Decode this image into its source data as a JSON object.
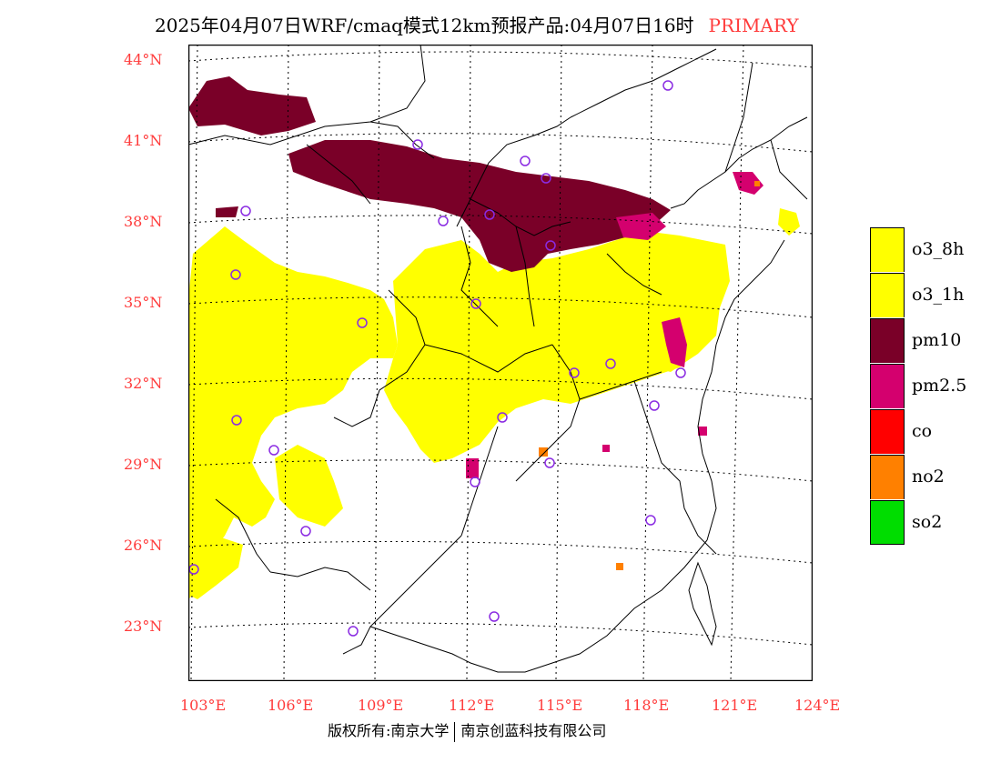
{
  "title": {
    "main": "2025年04月07日WRF/cmaq模式12km预报产品:04月07日16时",
    "mode": "PRIMARY"
  },
  "colors": {
    "title_accent": "#ff3b3b",
    "axis_label": "#ff3b3b",
    "o3_8h": "#ffff00",
    "o3_1h": "#ffff00",
    "pm10": "#7a0028",
    "pm2_5": "#d4006e",
    "co": "#ff0000",
    "no2": "#ff8000",
    "so2": "#00dd00",
    "station_marker": "#8a2be2"
  },
  "axes": {
    "lat_labels": [
      "44°N",
      "41°N",
      "38°N",
      "35°N",
      "32°N",
      "29°N",
      "26°N",
      "23°N"
    ],
    "lon_labels": [
      "103°E",
      "106°E",
      "109°E",
      "112°E",
      "115°E",
      "118°E",
      "121°E",
      "124°E"
    ]
  },
  "legend": [
    {
      "key": "o3_8h",
      "label": "o3_8h",
      "color": "#ffff00"
    },
    {
      "key": "o3_1h",
      "label": "o3_1h",
      "color": "#ffff00"
    },
    {
      "key": "pm10",
      "label": "pm10",
      "color": "#7a0028"
    },
    {
      "key": "pm2_5",
      "label": "pm2.5",
      "color": "#d4006e"
    },
    {
      "key": "co",
      "label": "co",
      "color": "#ff0000"
    },
    {
      "key": "no2",
      "label": "no2",
      "color": "#ff8000"
    },
    {
      "key": "so2",
      "label": "so2",
      "color": "#00dd00"
    }
  ],
  "footer": {
    "copyright": "版权所有:南京大学",
    "company": "南京创蓝科技有限公司"
  }
}
